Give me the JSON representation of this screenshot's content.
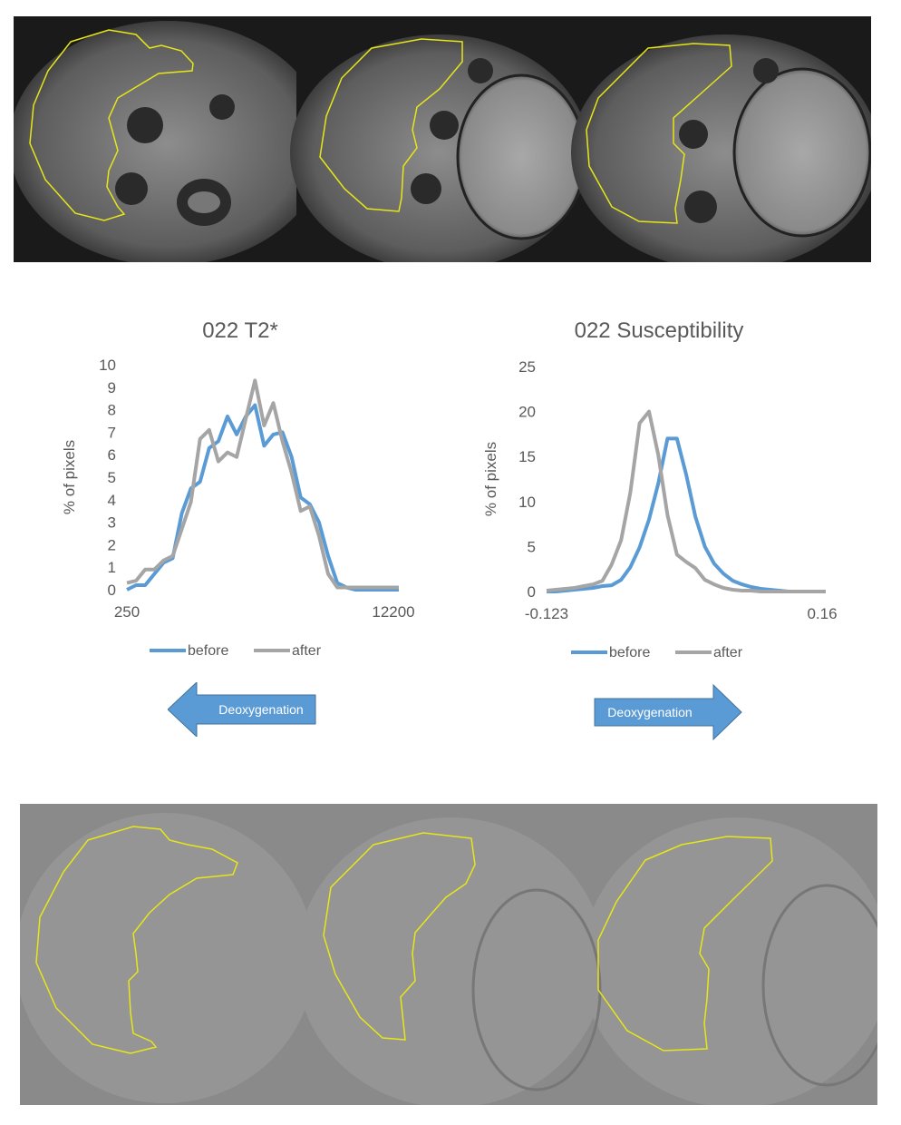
{
  "chart_data": [
    {
      "type": "line",
      "title": "022 T2*",
      "ylabel": "% of pixels",
      "xlabel": "",
      "ylim": [
        0,
        10
      ],
      "yticks": [
        0,
        1,
        2,
        3,
        4,
        5,
        6,
        7,
        8,
        9,
        10
      ],
      "x_tick_labels": [
        "250",
        "12200"
      ],
      "legend": "bottom",
      "x": [
        250,
        652,
        1054,
        1456,
        1858,
        2260,
        2662,
        3064,
        3466,
        3868,
        4270,
        4672,
        5074,
        5476,
        5878,
        6280,
        6682,
        7084,
        7486,
        7888,
        8290,
        8692,
        9094,
        9496,
        9898,
        10300,
        10702,
        11104,
        11506,
        11908,
        12200
      ],
      "series": [
        {
          "name": "before",
          "color": "#5b9bd5",
          "values": [
            0.0,
            0.2,
            0.2,
            0.7,
            1.2,
            1.4,
            3.4,
            4.5,
            4.8,
            6.3,
            6.6,
            7.7,
            6.9,
            7.7,
            8.2,
            6.4,
            6.9,
            7.0,
            5.9,
            4.1,
            3.8,
            3.0,
            1.5,
            0.3,
            0.1,
            0.0,
            0.0,
            0.0,
            0.0,
            0.0,
            0.0
          ]
        },
        {
          "name": "after",
          "color": "#a5a5a5",
          "values": [
            0.3,
            0.4,
            0.9,
            0.9,
            1.3,
            1.5,
            2.7,
            3.9,
            6.7,
            7.1,
            5.7,
            6.1,
            5.9,
            7.6,
            9.3,
            7.3,
            8.3,
            6.6,
            5.2,
            3.5,
            3.7,
            2.4,
            0.7,
            0.1,
            0.1,
            0.1,
            0.1,
            0.1,
            0.1,
            0.1,
            0.1
          ]
        }
      ]
    },
    {
      "type": "line",
      "title": "022 Susceptibility",
      "ylabel": "% of pixels",
      "xlabel": "",
      "ylim": [
        0,
        25
      ],
      "yticks": [
        0,
        5,
        10,
        15,
        20,
        25
      ],
      "x_tick_labels": [
        "-0.123",
        "0.16"
      ],
      "legend": "bottom",
      "x": [
        -0.123,
        -0.1136,
        -0.1041,
        -0.0947,
        -0.0853,
        -0.0758,
        -0.0664,
        -0.057,
        -0.0475,
        -0.0381,
        -0.0287,
        -0.0192,
        -0.0098,
        -0.0004,
        0.0091,
        0.0185,
        0.0279,
        0.0374,
        0.0468,
        0.0562,
        0.0657,
        0.0751,
        0.0845,
        0.094,
        0.1034,
        0.1128,
        0.1223,
        0.1317,
        0.1411,
        0.1506,
        0.16
      ],
      "series": [
        {
          "name": "before",
          "color": "#5b9bd5",
          "values": [
            0.0,
            0.0,
            0.1,
            0.2,
            0.3,
            0.4,
            0.6,
            0.7,
            1.3,
            2.7,
            4.9,
            8.0,
            12.0,
            17.0,
            17.0,
            13.0,
            8.3,
            5.0,
            3.1,
            2.0,
            1.2,
            0.8,
            0.5,
            0.3,
            0.2,
            0.1,
            0.0,
            0.0,
            0.0,
            0.0,
            0.0
          ]
        },
        {
          "name": "after",
          "color": "#a5a5a5",
          "values": [
            0.1,
            0.2,
            0.3,
            0.4,
            0.6,
            0.8,
            1.2,
            3.0,
            5.7,
            11.0,
            18.7,
            20.0,
            15.2,
            8.5,
            4.1,
            3.3,
            2.6,
            1.3,
            0.8,
            0.4,
            0.2,
            0.1,
            0.1,
            0.0,
            0.0,
            0.0,
            0.0,
            0.0,
            0.0,
            0.0,
            0.0
          ]
        }
      ]
    }
  ],
  "arrows": [
    {
      "label": "Deoxygenation",
      "direction": "left",
      "color": "#5b9bd5"
    },
    {
      "label": "Deoxygenation",
      "direction": "right",
      "color": "#5b9bd5"
    }
  ],
  "images": {
    "top_row": "Three grayscale MRI T2* axial slices with yellow polygon ROI outlines with square vertex markers",
    "bottom_row": "Three grayscale susceptibility map axial slices with yellow polygon ROI outlines with square vertex markers",
    "roi_color": "#ffff33"
  }
}
